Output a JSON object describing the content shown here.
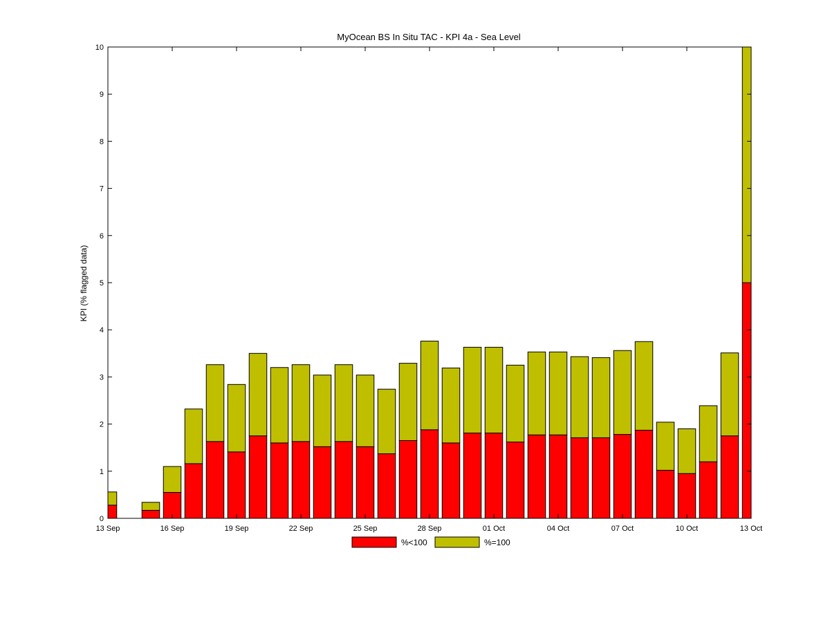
{
  "chart_data": {
    "type": "bar",
    "stacked": true,
    "title": "MyOcean  BS In Situ TAC - KPI 4a - Sea Level",
    "ylabel": "KPI (% flagged data)",
    "xlabel": "",
    "x_range": [
      "13 Sep",
      "13 Oct"
    ],
    "ylim": [
      0,
      10
    ],
    "yticks": [
      "0",
      "1",
      "2",
      "3",
      "4",
      "5",
      "6",
      "7",
      "8",
      "9",
      "10"
    ],
    "xticks": [
      "13 Sep",
      "16 Sep",
      "19 Sep",
      "22 Sep",
      "25 Sep",
      "28 Sep",
      "01 Oct",
      "04 Oct",
      "07 Oct",
      "10 Oct",
      "13 Oct"
    ],
    "grid": false,
    "legend_position": "bottom-center",
    "categories": [
      "13 Sep",
      "14 Sep",
      "15 Sep",
      "16 Sep",
      "17 Sep",
      "18 Sep",
      "19 Sep",
      "20 Sep",
      "21 Sep",
      "22 Sep",
      "23 Sep",
      "24 Sep",
      "25 Sep",
      "26 Sep",
      "27 Sep",
      "28 Sep",
      "29 Sep",
      "30 Sep",
      "01 Oct",
      "02 Oct",
      "03 Oct",
      "04 Oct",
      "05 Oct",
      "06 Oct",
      "07 Oct",
      "08 Oct",
      "09 Oct",
      "10 Oct",
      "11 Oct",
      "12 Oct",
      "13 Oct"
    ],
    "series": [
      {
        "name": "%<100",
        "color": "#ff0000",
        "values": [
          0.28,
          null,
          0.17,
          0.55,
          1.16,
          1.63,
          1.41,
          1.75,
          1.6,
          1.63,
          1.52,
          1.63,
          1.52,
          1.37,
          1.65,
          1.88,
          1.6,
          1.81,
          1.81,
          1.62,
          1.77,
          1.77,
          1.71,
          1.71,
          1.78,
          1.87,
          1.02,
          0.95,
          1.2,
          1.75,
          5.0
        ]
      },
      {
        "name": "%=100",
        "color": "#bfbf00",
        "values": [
          0.28,
          null,
          0.17,
          0.55,
          1.16,
          1.63,
          1.43,
          1.75,
          1.6,
          1.63,
          1.52,
          1.63,
          1.52,
          1.37,
          1.64,
          1.88,
          1.59,
          1.82,
          1.82,
          1.63,
          1.76,
          1.76,
          1.72,
          1.7,
          1.78,
          1.88,
          1.02,
          0.95,
          1.19,
          1.76,
          5.0
        ]
      }
    ]
  }
}
